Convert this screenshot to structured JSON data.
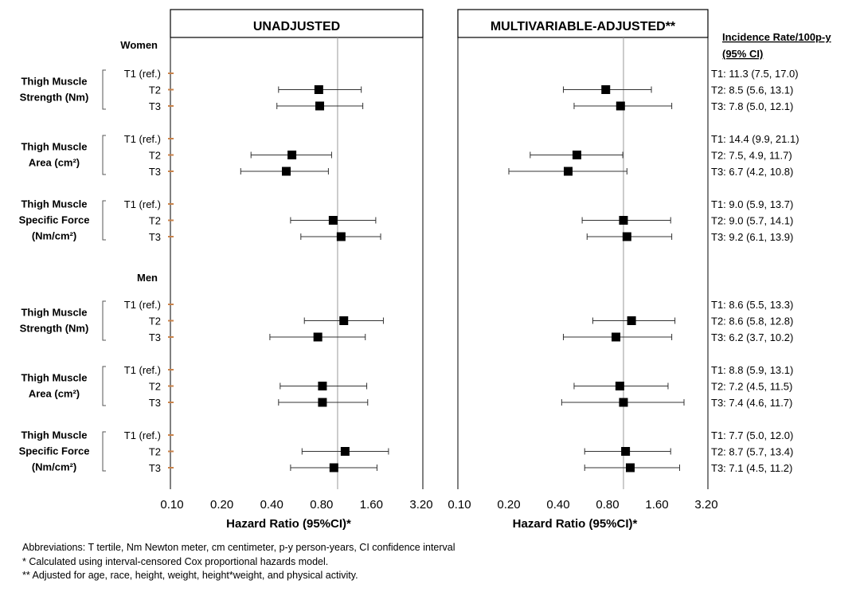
{
  "chart_data": {
    "type": "forest",
    "axis": {
      "label": "Hazard Ratio (95%CI)*",
      "scale": "log",
      "xlim": [
        0.1,
        3.2
      ],
      "ticks": [
        0.1,
        0.2,
        0.4,
        0.8,
        1.6,
        3.2
      ],
      "tick_labels": [
        "0.10",
        "0.20",
        "0.40",
        "0.80",
        "1.60",
        "3.20"
      ],
      "reference_line": 1.0
    },
    "panels": [
      {
        "id": "unadjusted",
        "title": "UNADJUSTED"
      },
      {
        "id": "adjusted",
        "title": "MULTIVARIABLE-ADJUSTED**"
      }
    ],
    "incidence_header": [
      "Incidence Rate/100p-y",
      "(95% CI)"
    ],
    "groups": [
      {
        "label": "Women",
        "blocks": [
          {
            "label_lines": [
              "Thigh Muscle",
              "Strength (Nm)"
            ],
            "rows": [
              {
                "tertile": "T1 (ref.)",
                "unadjusted": null,
                "adjusted": null,
                "incidence": "T1: 11.3 (7.5, 17.0)"
              },
              {
                "tertile": "T2",
                "unadjusted": {
                  "hr": 0.77,
                  "lo": 0.44,
                  "hi": 1.39
                },
                "adjusted": {
                  "hr": 0.78,
                  "lo": 0.43,
                  "hi": 1.48
                },
                "incidence": "T2: 8.5 (5.6, 13.1)"
              },
              {
                "tertile": "T3",
                "unadjusted": {
                  "hr": 0.78,
                  "lo": 0.43,
                  "hi": 1.42
                },
                "adjusted": {
                  "hr": 0.96,
                  "lo": 0.5,
                  "hi": 1.97
                },
                "incidence": "T3: 7.8 (5.0, 12.1)"
              }
            ]
          },
          {
            "label_lines": [
              "Thigh Muscle",
              "Area (cm²)"
            ],
            "rows": [
              {
                "tertile": "T1 (ref.)",
                "unadjusted": null,
                "adjusted": null,
                "incidence": "T1: 14.4 (9.9, 21.1)"
              },
              {
                "tertile": "T2",
                "unadjusted": {
                  "hr": 0.53,
                  "lo": 0.3,
                  "hi": 0.92
                },
                "adjusted": {
                  "hr": 0.52,
                  "lo": 0.27,
                  "hi": 0.99
                },
                "incidence": "T2: 7.5, 4.9, 11.7)"
              },
              {
                "tertile": "T3",
                "unadjusted": {
                  "hr": 0.49,
                  "lo": 0.26,
                  "hi": 0.88
                },
                "adjusted": {
                  "hr": 0.46,
                  "lo": 0.2,
                  "hi": 1.05
                },
                "incidence": "T3: 6.7 (4.2, 10.8)"
              }
            ]
          },
          {
            "label_lines": [
              "Thigh Muscle",
              "Specific Force",
              "(Nm/cm²)"
            ],
            "rows": [
              {
                "tertile": "T1 (ref.)",
                "unadjusted": null,
                "adjusted": null,
                "incidence": "T1: 9.0 (5.9, 13.7)"
              },
              {
                "tertile": "T2",
                "unadjusted": {
                  "hr": 0.94,
                  "lo": 0.52,
                  "hi": 1.7
                },
                "adjusted": {
                  "hr": 1.0,
                  "lo": 0.56,
                  "hi": 1.94
                },
                "incidence": "T2: 9.0 (5.7, 14.1)"
              },
              {
                "tertile": "T3",
                "unadjusted": {
                  "hr": 1.05,
                  "lo": 0.6,
                  "hi": 1.82
                },
                "adjusted": {
                  "hr": 1.05,
                  "lo": 0.6,
                  "hi": 1.97
                },
                "incidence": "T3: 9.2 (6.1, 13.9)"
              }
            ]
          }
        ]
      },
      {
        "label": "Men",
        "blocks": [
          {
            "label_lines": [
              "Thigh Muscle",
              "Strength (Nm)"
            ],
            "rows": [
              {
                "tertile": "T1 (ref.)",
                "unadjusted": null,
                "adjusted": null,
                "incidence": "T1: 8.6 (5.5, 13.3)"
              },
              {
                "tertile": "T2",
                "unadjusted": {
                  "hr": 1.09,
                  "lo": 0.63,
                  "hi": 1.89
                },
                "adjusted": {
                  "hr": 1.12,
                  "lo": 0.65,
                  "hi": 2.06
                },
                "incidence": "T2: 8.6 (5.8, 12.8)"
              },
              {
                "tertile": "T3",
                "unadjusted": {
                  "hr": 0.76,
                  "lo": 0.39,
                  "hi": 1.47
                },
                "adjusted": {
                  "hr": 0.9,
                  "lo": 0.43,
                  "hi": 1.97
                },
                "incidence": "T3: 6.2 (3.7, 10.2)"
              }
            ]
          },
          {
            "label_lines": [
              "Thigh Muscle",
              "Area (cm²)"
            ],
            "rows": [
              {
                "tertile": "T1 (ref.)",
                "unadjusted": null,
                "adjusted": null,
                "incidence": "T1: 8.8 (5.9, 13.1)"
              },
              {
                "tertile": "T2",
                "unadjusted": {
                  "hr": 0.81,
                  "lo": 0.45,
                  "hi": 1.5
                },
                "adjusted": {
                  "hr": 0.95,
                  "lo": 0.5,
                  "hi": 1.87
                },
                "incidence": "T2: 7.2 (4.5, 11.5)"
              },
              {
                "tertile": "T3",
                "unadjusted": {
                  "hr": 0.81,
                  "lo": 0.44,
                  "hi": 1.52
                },
                "adjusted": {
                  "hr": 1.0,
                  "lo": 0.42,
                  "hi": 2.34
                },
                "incidence": "T3: 7.4 (4.6, 11.7)"
              }
            ]
          },
          {
            "label_lines": [
              "Thigh Muscle",
              "Specific Force",
              "(Nm/cm²)"
            ],
            "rows": [
              {
                "tertile": "T1 (ref.)",
                "unadjusted": null,
                "adjusted": null,
                "incidence": "T1: 7.7 (5.0, 12.0)"
              },
              {
                "tertile": "T2",
                "unadjusted": {
                  "hr": 1.11,
                  "lo": 0.61,
                  "hi": 2.03
                },
                "adjusted": {
                  "hr": 1.03,
                  "lo": 0.58,
                  "hi": 1.94
                },
                "incidence": "T2: 8.7 (5.7, 13.4)"
              },
              {
                "tertile": "T3",
                "unadjusted": {
                  "hr": 0.95,
                  "lo": 0.52,
                  "hi": 1.73
                },
                "adjusted": {
                  "hr": 1.1,
                  "lo": 0.58,
                  "hi": 2.2
                },
                "incidence": "T3: 7.1 (4.5, 11.2)"
              }
            ]
          }
        ]
      }
    ]
  },
  "footnotes": [
    "Abbreviations: T tertile, Nm Newton meter, cm centimeter, p-y person-years, CI confidence interval",
    "* Calculated using interval-censored Cox proportional hazards model.",
    "** Adjusted for age, race, height, weight, height*weight, and physical activity."
  ],
  "colors": {
    "marker": "#000000",
    "ref_tick": "#c8824a",
    "ref_line": "#9a9a9a",
    "ci_line": "#333333"
  }
}
